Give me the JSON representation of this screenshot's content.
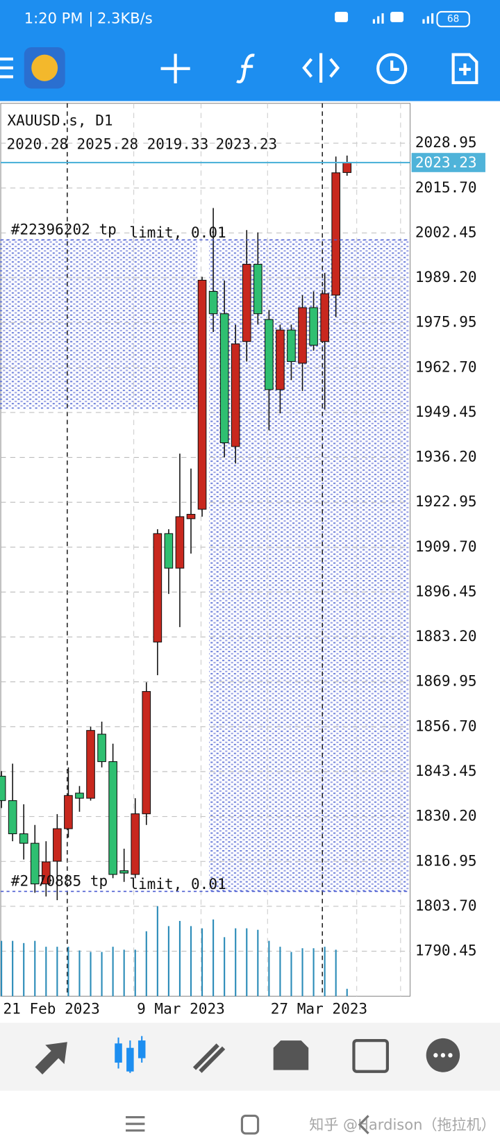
{
  "status_bar": {
    "time": "1:20 PM",
    "speed": "2.3KB/s",
    "battery": "68"
  },
  "chart_data": {
    "type": "candlestick",
    "title": "XAUUSD.s, D1",
    "categories": [
      null,
      "21 Feb 2023",
      null,
      null,
      null,
      null,
      null,
      null,
      null,
      null,
      null,
      null,
      null,
      "9 Mar 2023",
      null,
      null,
      null,
      null,
      null,
      null,
      null,
      null,
      null,
      null,
      null,
      "27 Mar 2023",
      null,
      null,
      null,
      null,
      null,
      null
    ],
    "open": [
      1842.1,
      1834.9,
      1825.1,
      1822.3,
      1810.3,
      1817.0,
      1826.6,
      1837.1,
      1835.6,
      1854.5,
      1846.4,
      1814.2,
      1813.1,
      1831.0,
      1881.7,
      1913.7,
      1903.5,
      1918.1,
      1920.9,
      1985.2,
      1978.6,
      1939.4,
      1970.4,
      1993.2,
      1976.9,
      1956.2,
      1973.8,
      1964.0,
      1980.4,
      1970.4,
      1984.1,
      2020.28
    ],
    "high": [
      1843.6,
      1845.8,
      1833.8,
      1827.7,
      1822.9,
      1830.9,
      1844.7,
      1839.2,
      1856.7,
      1858.2,
      1851.7,
      1820.7,
      1835.6,
      1869.8,
      1915.0,
      1915.0,
      1937.3,
      1932.9,
      1989.5,
      2009.8,
      1988.4,
      1975.4,
      2003.3,
      2002.6,
      1979.7,
      1975.4,
      1975.4,
      1984.1,
      1985.2,
      1990.6,
      2025.0,
      2025.28
    ],
    "low": [
      1832.7,
      1822.9,
      1817.5,
      1807.7,
      1806.6,
      1805.5,
      1824.0,
      1831.6,
      1834.9,
      1844.7,
      1812.0,
      1810.9,
      1812.0,
      1827.7,
      1871.9,
      1895.9,
      1886.1,
      1907.8,
      1918.7,
      1973.2,
      1936.2,
      1934.4,
      1964.5,
      1975.4,
      1944.2,
      1949.2,
      1959.0,
      1955.8,
      1967.7,
      1950.3,
      1977.6,
      2019.33
    ],
    "close": [
      1834.9,
      1825.1,
      1822.3,
      1810.3,
      1816.8,
      1826.6,
      1836.4,
      1835.6,
      1855.6,
      1846.4,
      1813.1,
      1813.5,
      1831.0,
      1867.1,
      1913.7,
      1903.5,
      1918.7,
      1919.4,
      1988.5,
      1978.6,
      1940.5,
      1969.7,
      1993.2,
      1978.6,
      1956.2,
      1973.8,
      1964.5,
      1980.4,
      1969.3,
      1984.5,
      2020.2,
      2023.23
    ],
    "volume": [
      75,
      75,
      72,
      75,
      67,
      67,
      67,
      62,
      60,
      60,
      67,
      63,
      63,
      88,
      122,
      95,
      102,
      95,
      92,
      104,
      80,
      92,
      92,
      90,
      75,
      67,
      60,
      65,
      65,
      67,
      63,
      10
    ],
    "up_color": "#c8281e",
    "down_color": "#2fbf71",
    "volume_color": "#2a8bb8",
    "price_line_color": "#4fb3d9",
    "ylim": [
      1777.16,
      2040.71
    ],
    "yticks": [
      2028.95,
      {
        "value": 2015.7,
        "label": "2015.70"
      },
      2002.45,
      {
        "value": 1989.2,
        "label": "1989.20"
      },
      1975.95,
      {
        "value": 1962.7,
        "label": "1962.70"
      },
      1949.45,
      {
        "value": 1936.2,
        "label": "1936.20"
      },
      1922.95,
      {
        "value": 1909.7,
        "label": "1909.70"
      },
      1896.45,
      {
        "value": 1883.2,
        "label": "1883.20"
      },
      1869.95,
      {
        "value": 1856.7,
        "label": "1856.70"
      },
      1843.45,
      {
        "value": 1830.2,
        "label": "1830.20"
      },
      1816.95,
      {
        "value": 1803.7,
        "label": "1803.70"
      },
      1790.45
    ],
    "grid": true,
    "orders": [
      {
        "label": "#22396202 tp",
        "type": "limit, 0.01",
        "price": 2000.4
      },
      {
        "label": "#2 70885 tp",
        "type": "limit, 0.01",
        "price": 1808.1
      }
    ]
  },
  "watermark": "知乎 @Hardison（拖拉机）"
}
